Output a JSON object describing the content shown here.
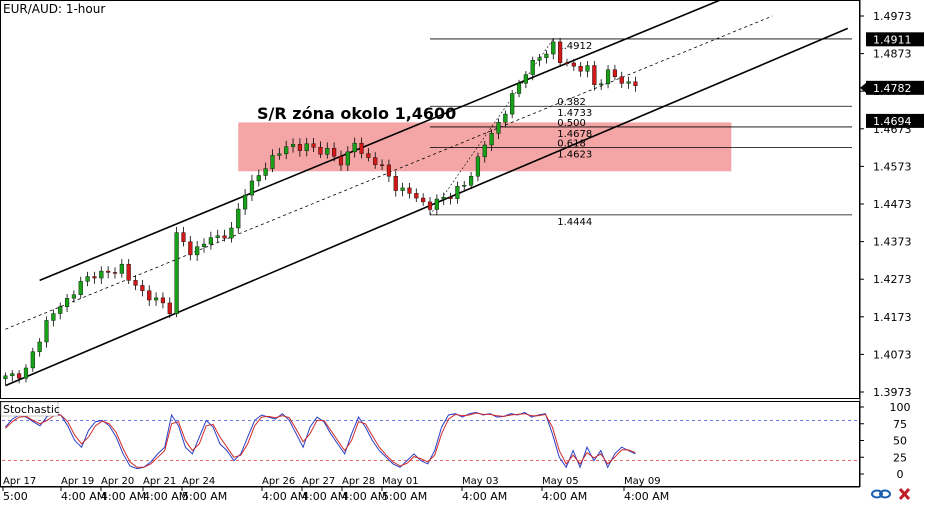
{
  "window": {
    "symbol_label": "EUR/AUD: 1-hour",
    "stochastic_label": "Stochastic"
  },
  "annotation": {
    "zone_label": "S/R zóna okolo 1,4600"
  },
  "fib": {
    "high_label": "1.4912",
    "low_label": "1.4444",
    "level_labels": [
      "0.382",
      "1.4733",
      "0.500",
      "1.4678",
      "0.618",
      "1.4623"
    ]
  },
  "price_axis": {
    "ticks": [
      "1.4973",
      "1.4873",
      "1.4773",
      "1.4673",
      "1.4573",
      "1.4473",
      "1.4373",
      "1.4273",
      "1.4173",
      "1.4073",
      "1.3973"
    ],
    "tick_values": [
      1.4973,
      1.4873,
      1.4773,
      1.4673,
      1.4573,
      1.4473,
      1.4373,
      1.4273,
      1.4173,
      1.4073,
      1.3973
    ],
    "tags": [
      {
        "label": "1.4911",
        "value": 1.4911
      },
      {
        "label": "1.4782",
        "value": 1.4782
      },
      {
        "label": "1.4694",
        "value": 1.4694
      }
    ]
  },
  "stoch_axis": {
    "ticks": [
      "100",
      "75",
      "50",
      "25",
      "0"
    ],
    "tick_values": [
      100,
      75,
      50,
      25,
      0
    ]
  },
  "time_axis": {
    "top_row": [
      "Apr 17",
      "Apr 19",
      "Apr 20",
      "Apr 21",
      "Apr 24",
      "Apr 26",
      "Apr 27",
      "Apr 28",
      "May 01",
      "May 03",
      "May 05",
      "May 09"
    ],
    "bottom_row": [
      "5:00",
      "4:00 AM",
      "4:00 AM",
      "4:00 AM",
      "5:00 AM",
      "4:00 AM",
      "4:00 AM",
      "4:00 AM",
      "5:00 AM",
      "4:00 AM",
      "4:00 AM",
      "4:00 AM"
    ]
  },
  "colors": {
    "zone": "#f4a6a6",
    "up_candle": "#19a019",
    "down_candle": "#d21919",
    "stoch_k": "#2a3fc8",
    "stoch_d": "#d02a2a",
    "tag_black": "#000000",
    "logo_blue": "#1a5fb4",
    "logo_red": "#c01c28"
  },
  "chart_data": [
    {
      "type": "candlestick",
      "title": "EUR/AUD: 1-hour",
      "ylim": [
        1.3973,
        1.4973
      ],
      "close_path": [
        [
          0,
          1.401
        ],
        [
          3,
          1.403
        ],
        [
          6,
          1.416
        ],
        [
          9,
          1.422
        ],
        [
          11,
          1.426
        ],
        [
          13,
          1.429
        ],
        [
          15,
          1.4285
        ],
        [
          17,
          1.431
        ],
        [
          18,
          1.427
        ],
        [
          20,
          1.424
        ],
        [
          22,
          1.4215
        ],
        [
          24,
          1.4195
        ],
        [
          25,
          1.439
        ],
        [
          27,
          1.4345
        ],
        [
          30,
          1.438
        ],
        [
          33,
          1.44
        ],
        [
          35,
          1.451
        ],
        [
          37,
          1.4545
        ],
        [
          39,
          1.46
        ],
        [
          42,
          1.463
        ],
        [
          45,
          1.462
        ],
        [
          47,
          1.4615
        ],
        [
          49,
          1.458
        ],
        [
          51,
          1.464
        ],
        [
          52,
          1.46
        ],
        [
          54,
          1.459
        ],
        [
          57,
          1.452
        ],
        [
          60,
          1.449
        ],
        [
          62,
          1.4465
        ],
        [
          64,
          1.449
        ],
        [
          67,
          1.452
        ],
        [
          70,
          1.463
        ],
        [
          73,
          1.472
        ],
        [
          76,
          1.483
        ],
        [
          78,
          1.486
        ],
        [
          80,
          1.49
        ],
        [
          81,
          1.485
        ],
        [
          83,
          1.484
        ],
        [
          85,
          1.483
        ],
        [
          86,
          1.479
        ],
        [
          88,
          1.482
        ],
        [
          90,
          1.48
        ],
        [
          92,
          1.479
        ]
      ],
      "channel_lines": [
        {
          "name": "upper",
          "from": [
            5,
            1.427
          ],
          "to": [
            105,
            1.502
          ]
        },
        {
          "name": "middle",
          "from": [
            0,
            1.414
          ],
          "to": [
            112,
            1.4973
          ]
        },
        {
          "name": "lower",
          "from": [
            0,
            1.399
          ],
          "to": [
            123,
            1.494
          ]
        }
      ],
      "zone": {
        "top": 1.469,
        "bottom": 1.456,
        "x_from": 34,
        "x_to": 106
      },
      "fib_levels": [
        {
          "ratio": 0.382,
          "price": 1.4733
        },
        {
          "ratio": 0.5,
          "price": 1.4678
        },
        {
          "ratio": 0.618,
          "price": 1.4623
        }
      ],
      "swing_high": 1.4912,
      "swing_low": 1.4444
    },
    {
      "type": "line",
      "title": "Stochastic",
      "ylim": [
        0,
        100
      ],
      "levels": [
        80,
        20
      ],
      "series": [
        {
          "values": [
            70,
            82,
            88,
            85,
            78,
            72,
            86,
            90,
            88,
            72,
            50,
            40,
            65,
            78,
            80,
            72,
            55,
            30,
            12,
            8,
            10,
            18,
            30,
            40,
            88,
            72,
            40,
            30,
            55,
            80,
            70,
            45,
            35,
            20,
            30,
            55,
            80,
            88,
            85,
            82,
            90,
            80,
            60,
            40,
            70,
            85,
            78,
            60,
            45,
            30,
            60,
            85,
            70,
            50,
            35,
            25,
            15,
            10,
            20,
            30,
            20,
            15,
            35,
            70,
            88,
            90,
            85,
            90,
            92,
            88,
            90,
            85,
            86,
            90,
            88,
            92,
            85,
            88,
            90,
            60,
            25,
            10,
            35,
            10,
            40,
            20,
            35,
            10,
            30,
            40,
            35,
            30
          ]
        },
        {
          "values": [
            68,
            78,
            85,
            86,
            80,
            75,
            80,
            87,
            88,
            78,
            58,
            45,
            55,
            72,
            79,
            75,
            62,
            38,
            18,
            10,
            10,
            15,
            25,
            35,
            75,
            78,
            50,
            35,
            45,
            72,
            74,
            55,
            40,
            25,
            28,
            45,
            72,
            85,
            86,
            84,
            87,
            84,
            67,
            48,
            60,
            80,
            80,
            65,
            50,
            35,
            50,
            78,
            75,
            57,
            40,
            28,
            18,
            12,
            16,
            26,
            23,
            18,
            28,
            60,
            82,
            89,
            87,
            88,
            91,
            89,
            89,
            87,
            86,
            88,
            89,
            90,
            87,
            87,
            89,
            70,
            35,
            15,
            28,
            15,
            32,
            24,
            30,
            15,
            25,
            36,
            36,
            32
          ]
        }
      ]
    }
  ]
}
